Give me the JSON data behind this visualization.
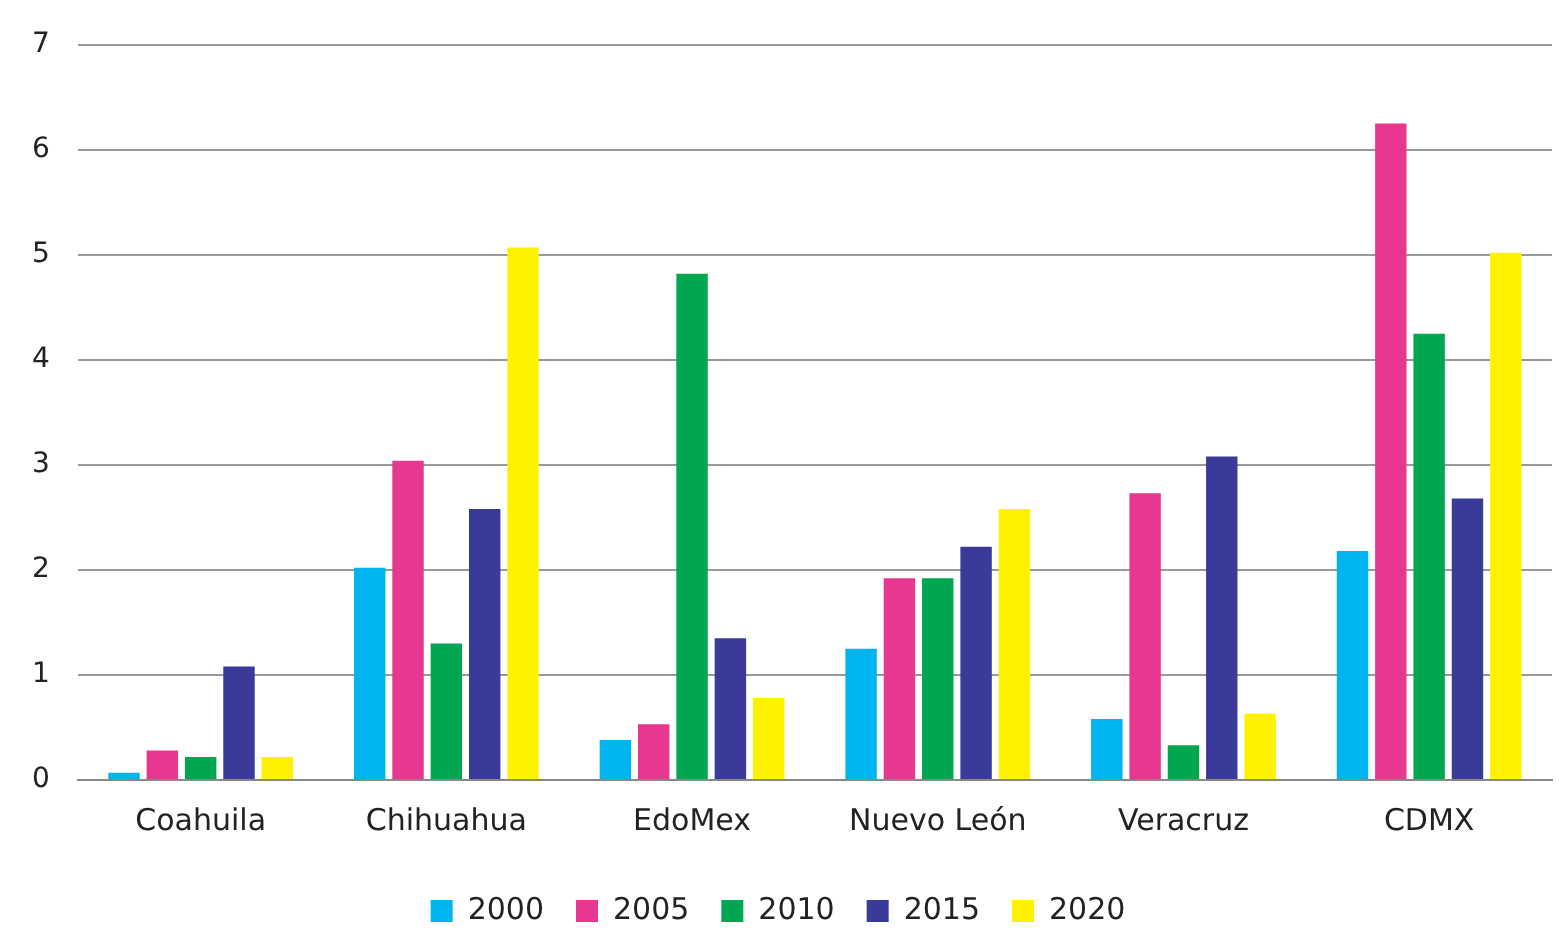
{
  "chart_data": {
    "type": "bar",
    "categories": [
      "Coahuila",
      "Chihuahua",
      "EdoMex",
      "Nuevo León",
      "Veracruz",
      "CDMX"
    ],
    "series": [
      {
        "name": "2000",
        "color": "#00b4f0",
        "values": [
          0.07,
          2.02,
          0.38,
          1.25,
          0.58,
          2.18
        ]
      },
      {
        "name": "2005",
        "color": "#e8378f",
        "values": [
          0.28,
          3.04,
          0.53,
          1.92,
          2.73,
          6.25
        ]
      },
      {
        "name": "2010",
        "color": "#00a650",
        "values": [
          0.22,
          1.3,
          4.82,
          1.92,
          0.33,
          4.25
        ]
      },
      {
        "name": "2015",
        "color": "#3a3a99",
        "values": [
          1.08,
          2.58,
          1.35,
          2.22,
          3.08,
          2.68
        ]
      },
      {
        "name": "2020",
        "color": "#fff200",
        "values": [
          0.22,
          5.07,
          0.78,
          2.58,
          0.63,
          5.02
        ]
      }
    ],
    "ylim": [
      0,
      7
    ],
    "yticks": [
      0,
      1,
      2,
      3,
      4,
      5,
      6,
      7
    ],
    "grid": "y",
    "legend": "bottom"
  }
}
